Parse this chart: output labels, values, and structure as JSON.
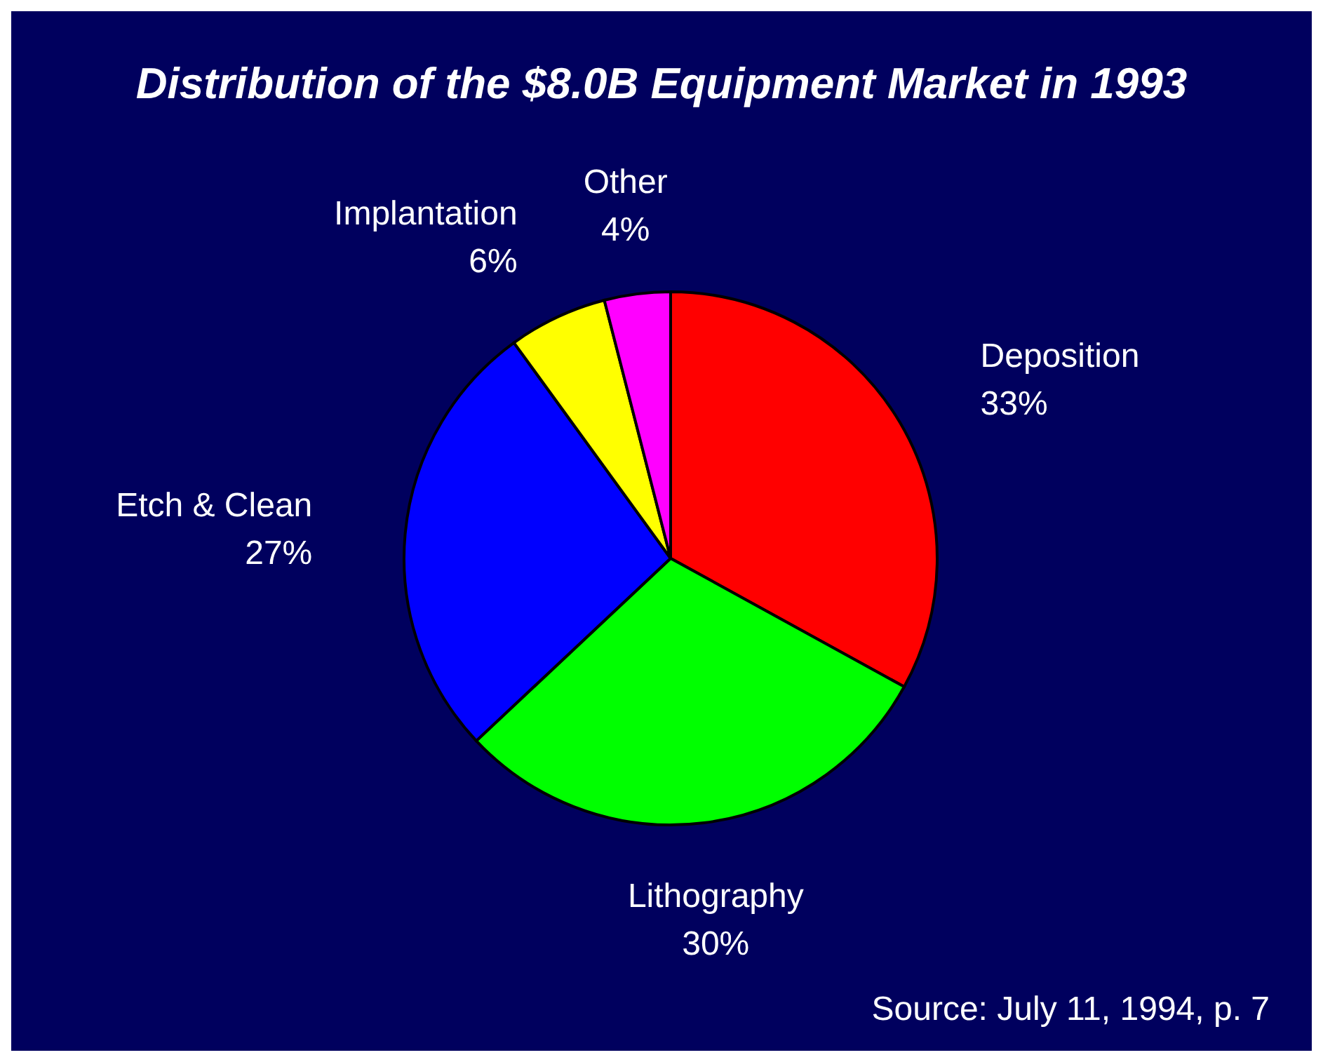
{
  "chart_data": {
    "type": "pie",
    "title": "Distribution of the $8.0B Equipment Market in 1993",
    "categories": [
      "Deposition",
      "Lithography",
      "Etch & Clean",
      "Implantation",
      "Other"
    ],
    "values": [
      33,
      30,
      27,
      6,
      4
    ],
    "colors": [
      "#ff0000",
      "#00ff00",
      "#0000ff",
      "#ffff00",
      "#ff00ff"
    ],
    "value_labels": [
      "33%",
      "30%",
      "27%",
      "6%",
      "4%"
    ],
    "annotations": [
      "Source: July 11, 1994, p. 7"
    ]
  }
}
